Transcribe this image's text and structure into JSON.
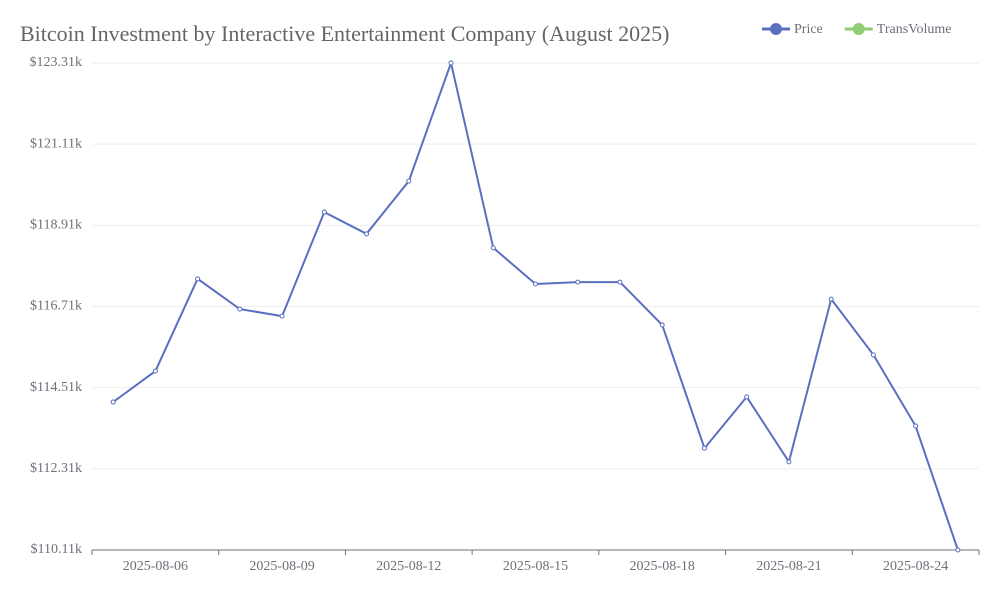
{
  "chart_data": {
    "type": "line",
    "title": "Bitcoin Investment by Interactive Entertainment Company (August 2025)",
    "categories": [
      null,
      "2025-08-06",
      null,
      null,
      "2025-08-09",
      null,
      null,
      "2025-08-12",
      null,
      null,
      "2025-08-15",
      null,
      null,
      "2025-08-18",
      null,
      null,
      "2025-08-21",
      null,
      null,
      "2025-08-24",
      null
    ],
    "series": [
      {
        "name": "Price",
        "color": "#5b6fbf",
        "values": [
          114120,
          114960,
          117460,
          116640,
          116450,
          119270,
          118680,
          120110,
          123310,
          118300,
          117320,
          117370,
          117370,
          116210,
          112870,
          114260,
          112500,
          116910,
          115400,
          113470,
          110110
        ]
      },
      {
        "name": "TransVolume",
        "color": "#91cc75",
        "values": [
          null,
          null,
          null,
          null,
          null,
          null,
          null,
          null,
          null,
          null,
          null,
          null,
          null,
          null,
          null,
          null,
          null,
          null,
          null,
          null,
          null
        ]
      }
    ],
    "ylim": [
      110110,
      123310
    ],
    "yticks": [
      {
        "value": 110110,
        "label": "$110.11k"
      },
      {
        "value": 112310,
        "label": "$112.31k"
      },
      {
        "value": 114510,
        "label": "$114.51k"
      },
      {
        "value": 116710,
        "label": "$116.71k"
      },
      {
        "value": 118910,
        "label": "$118.91k"
      },
      {
        "value": 121110,
        "label": "$121.11k"
      },
      {
        "value": 123310,
        "label": "$123.31k"
      }
    ],
    "grid": true,
    "legend": "top-right"
  }
}
